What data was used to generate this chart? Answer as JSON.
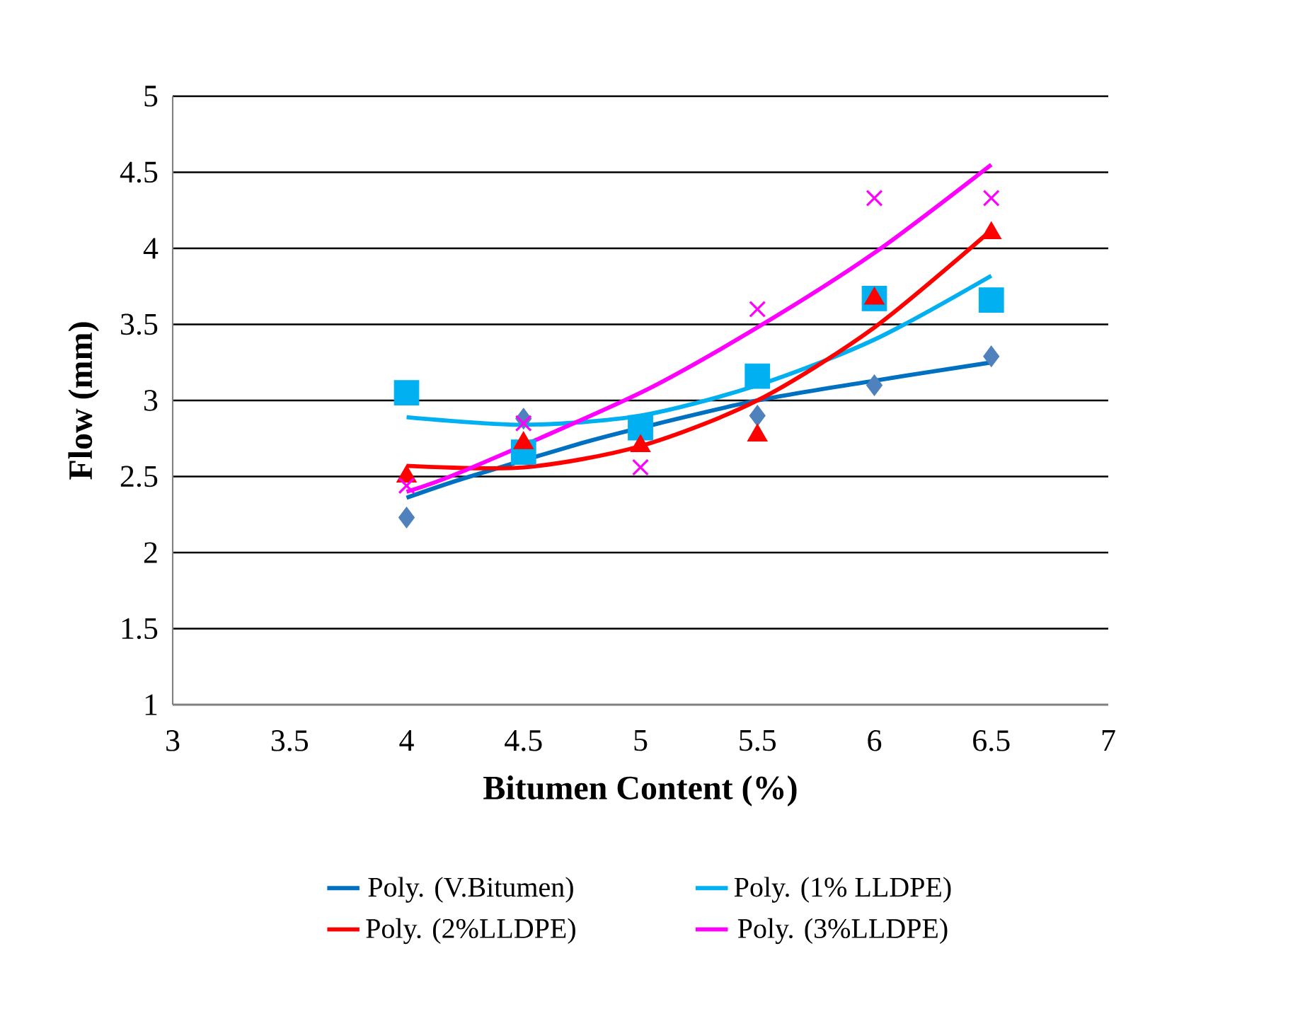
{
  "chart_data": {
    "type": "scatter",
    "xlabel": "Bitumen Content (%)",
    "ylabel": "Flow (mm)",
    "xlim": [
      3,
      7
    ],
    "xticks": [
      3,
      3.5,
      4,
      4.5,
      5,
      5.5,
      6,
      6.5,
      7
    ],
    "ylim": [
      1,
      5
    ],
    "yticks": [
      1,
      1.5,
      2,
      2.5,
      3,
      3.5,
      4,
      4.5,
      5
    ],
    "grid": "y",
    "legend": "bottom",
    "series": [
      {
        "marker": "diamond",
        "color": "#4f81bd",
        "x": [
          4,
          4.5,
          5,
          5.5,
          6,
          6.5
        ],
        "values": [
          2.23,
          2.88,
          null,
          2.9,
          3.1,
          3.29
        ]
      },
      {
        "marker": "square",
        "color": "#00b0f0",
        "x": [
          4,
          4.5,
          5,
          5.5,
          6,
          6.5
        ],
        "values": [
          3.05,
          2.66,
          2.82,
          3.16,
          3.67,
          3.66
        ]
      },
      {
        "marker": "triangle",
        "color": "#ff0000",
        "x": [
          4,
          4.5,
          5,
          5.5,
          6,
          6.5
        ],
        "values": [
          2.5,
          2.72,
          2.7,
          2.77,
          3.67,
          4.1
        ]
      },
      {
        "marker": "cross",
        "color": "#ff00ff",
        "x": [
          4,
          4.5,
          5,
          5.5,
          6,
          6.5
        ],
        "values": [
          2.44,
          2.85,
          2.56,
          3.6,
          4.33,
          4.33
        ]
      },
      {
        "type": "line",
        "name": "Poly. (V.Bitumen)",
        "color": "#0070c0",
        "x": [
          4,
          4.25,
          4.75,
          5,
          5.5,
          6,
          6.5
        ],
        "values": [
          2.36,
          2.49,
          2.72,
          2.82,
          3.0,
          3.13,
          3.25
        ]
      },
      {
        "type": "line",
        "name": "Poly. (1% LLDPE)",
        "color": "#00b0f0",
        "x": [
          4,
          4.5,
          5,
          5.5,
          6,
          6.5
        ],
        "values": [
          2.89,
          2.84,
          2.9,
          3.1,
          3.4,
          3.82
        ]
      },
      {
        "type": "line",
        "name": "Poly. (2%LLDPE)",
        "color": "#ff0000",
        "x": [
          4,
          4.5,
          5,
          5.5,
          6,
          6.5
        ],
        "values": [
          2.57,
          2.56,
          2.7,
          3.0,
          3.48,
          4.12
        ]
      },
      {
        "type": "line",
        "name": "Poly. (3%LLDPE)",
        "color": "#ff00ff",
        "x": [
          4,
          4.25,
          5,
          5.5,
          6,
          6.5
        ],
        "values": [
          2.4,
          2.54,
          3.05,
          3.48,
          3.97,
          4.55
        ]
      }
    ]
  }
}
